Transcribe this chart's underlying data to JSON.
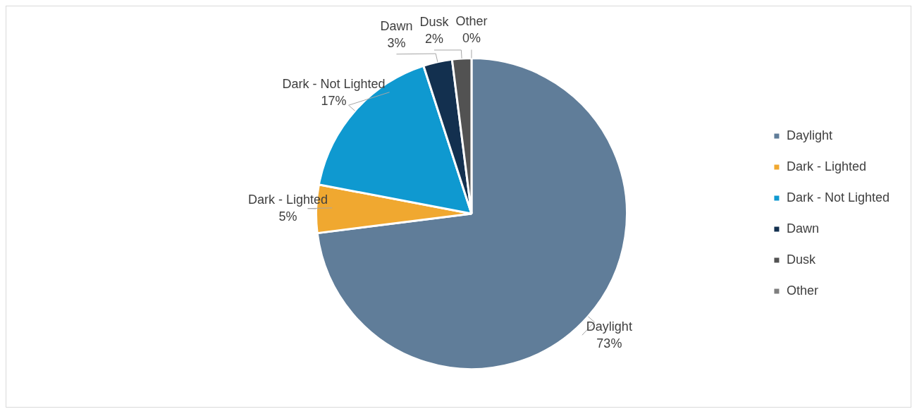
{
  "chart_data": {
    "type": "pie",
    "categories": [
      "Daylight",
      "Dark - Lighted",
      "Dark - Not Lighted",
      "Dawn",
      "Dusk",
      "Other"
    ],
    "values": [
      73,
      5,
      17,
      3,
      2,
      0
    ],
    "colors": [
      "#607d99",
      "#f0a830",
      "#0f99d0",
      "#13304f",
      "#525252",
      "#7f7f7f"
    ],
    "value_labels": [
      "73%",
      "5%",
      "17%",
      "3%",
      "2%",
      "0%"
    ],
    "legend": "right"
  }
}
